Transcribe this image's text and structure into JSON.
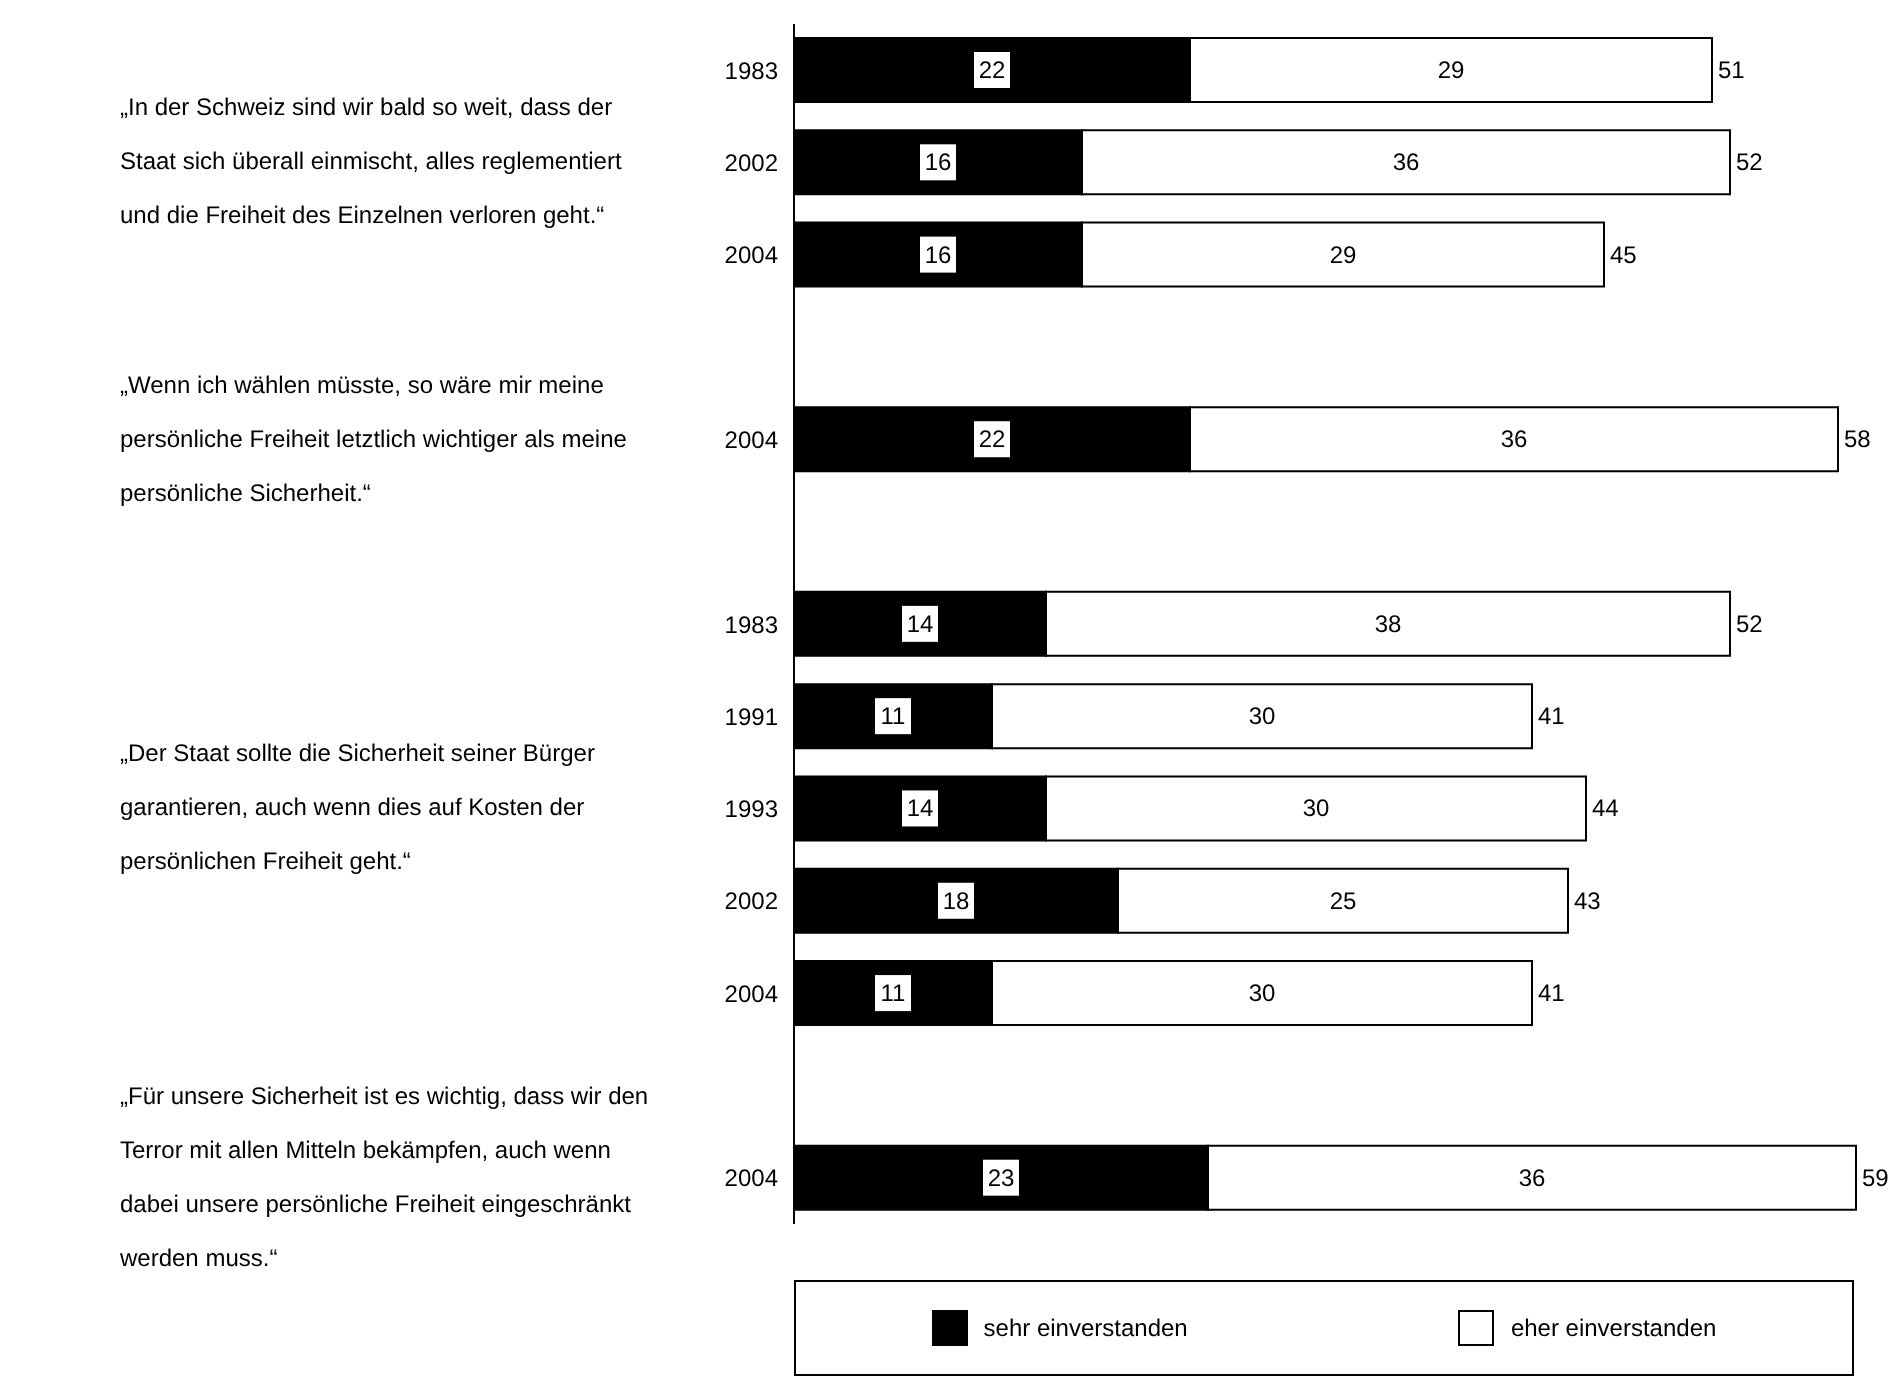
{
  "chart_data": {
    "type": "bar",
    "orientation": "horizontal",
    "stacked": true,
    "data_labels": true,
    "legend": "bottom",
    "categories": [
      "1983",
      "2002",
      "2004",
      null,
      "2004",
      null,
      "1983",
      "1991",
      "1993",
      "2002",
      "2004",
      null,
      "2004"
    ],
    "series": [
      {
        "name": "sehr einverstanden",
        "color": "#000000",
        "values": [
          22,
          16,
          16,
          null,
          22,
          null,
          14,
          11,
          14,
          18,
          11,
          null,
          23
        ]
      },
      {
        "name": "eher einverstanden",
        "color": "#ffffff",
        "values": [
          29,
          36,
          29,
          null,
          36,
          null,
          38,
          30,
          30,
          25,
          30,
          null,
          36
        ]
      }
    ],
    "totals": [
      "51",
      "52",
      "45",
      null,
      "58",
      null,
      "52",
      "41",
      "44",
      "43",
      "41",
      null,
      "59"
    ],
    "annotations": [
      "„In der Schweiz sind wir bald so weit, dass der Staat sich überall einmischt, alles reglementiert und die Freiheit des Einzelnen verloren geht.“",
      "„Wenn ich wählen müsste, so wäre mir meine persönliche Freiheit letztlich wichtiger als meine persönliche Sicherheit.“",
      "„Der Staat sollte die Sicherheit seiner Bürger garantieren, auch wenn dies auf Kosten der persönlichen Freiheit geht.“",
      "„Für unsere Sicherheit ist es wichtig, dass wir den Terror mit allen Mitteln bekämpfen, auch wenn dabei unsere persönliche Freiheit eingeschränkt werden muss.“"
    ]
  }
}
